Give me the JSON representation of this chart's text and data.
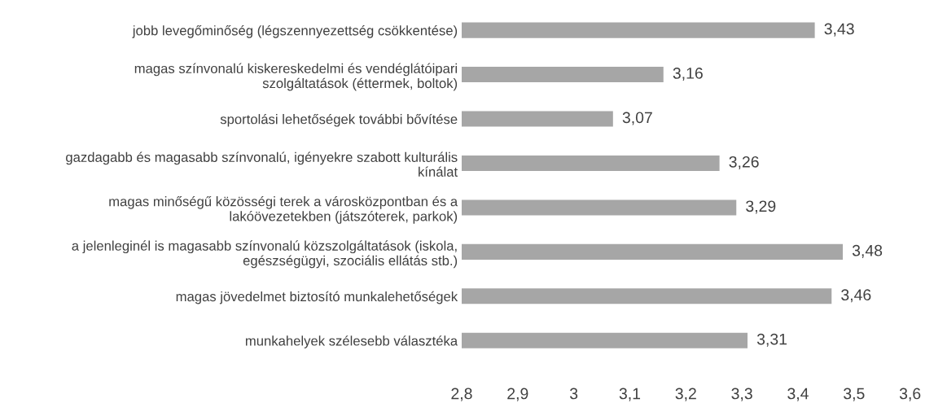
{
  "chart_data": {
    "type": "bar",
    "orientation": "horizontal",
    "categories": [
      "jobb levegőminőség (légszennyezettség csökkentése)",
      "magas színvonalú kiskereskedelmi és vendéglátóipari\nszolgáltatások (éttermek, boltok)",
      "sportolási lehetőségek további bővítése",
      "gazdagabb és magasabb színvonalú, igényekre szabott kulturális\nkínálat",
      "magas minőségű közösségi terek a városközpontban és a\nlakóövezetekben (játszóterek, parkok)",
      "a jelenleginél is magasabb színvonalú közszolgáltatások (iskola,\negészségügyi, szociális ellátás stb.)",
      "magas jövedelmet biztosító munkalehetőségek",
      "munkahelyek szélesebb választéka"
    ],
    "values": [
      3.43,
      3.16,
      3.07,
      3.26,
      3.29,
      3.48,
      3.46,
      3.31
    ],
    "value_labels": [
      "3,43",
      "3,16",
      "3,07",
      "3,26",
      "3,29",
      "3,48",
      "3,46",
      "3,31"
    ],
    "color": "#a6a6a6",
    "xlim": [
      2.8,
      3.6
    ],
    "xticks": [
      {
        "value": 2.8,
        "label": "2,8"
      },
      {
        "value": 2.9,
        "label": "2,9"
      },
      {
        "value": 3,
        "label": "3"
      },
      {
        "value": 3.1,
        "label": "3,1"
      },
      {
        "value": 3.2,
        "label": "3,2"
      },
      {
        "value": 3.3,
        "label": "3,3"
      },
      {
        "value": 3.4,
        "label": "3,4"
      },
      {
        "value": 3.5,
        "label": "3,5"
      },
      {
        "value": 3.6,
        "label": "3,6"
      }
    ],
    "grid": false,
    "legend": false
  }
}
